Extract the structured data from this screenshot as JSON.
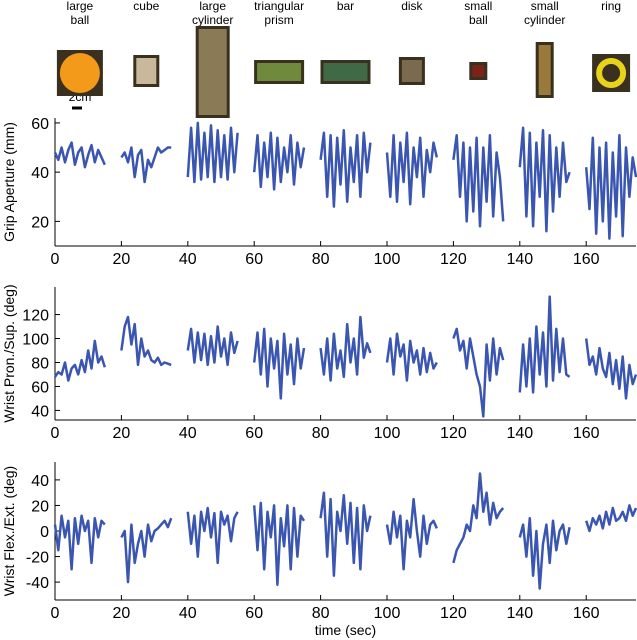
{
  "objects": [
    [
      "large",
      "ball"
    ],
    [
      "cube"
    ],
    [
      "large",
      "cylinder"
    ],
    [
      "triangular",
      "prism"
    ],
    [
      "bar"
    ],
    [
      "disk"
    ],
    [
      "small",
      "ball"
    ],
    [
      "small",
      "cylinder"
    ],
    [
      "ring"
    ]
  ],
  "scale_bar": "2cm",
  "chart_data": [
    {
      "type": "line",
      "ylabel": "Grip Aperture (mm)",
      "xlim": [
        0,
        175
      ],
      "ylim": [
        10,
        62
      ],
      "xticks": [
        0,
        20,
        40,
        60,
        80,
        100,
        120,
        140,
        160
      ],
      "yticks": [
        20,
        40,
        60
      ],
      "x": [
        0,
        1,
        2,
        3,
        4,
        5,
        6,
        7,
        8,
        9,
        10,
        11,
        12,
        13,
        14,
        15,
        17,
        20,
        21,
        22,
        23,
        24,
        25,
        26,
        27,
        28,
        29,
        30,
        31,
        32,
        33,
        34,
        35,
        37,
        40,
        41,
        42,
        43,
        44,
        45,
        46,
        47,
        48,
        49,
        50,
        51,
        52,
        53,
        54,
        55,
        57,
        60,
        61,
        62,
        63,
        64,
        65,
        66,
        67,
        68,
        69,
        70,
        71,
        72,
        73,
        74,
        75,
        77,
        80,
        81,
        82,
        83,
        84,
        85,
        86,
        87,
        88,
        89,
        90,
        91,
        92,
        93,
        94,
        95,
        97,
        100,
        101,
        102,
        103,
        104,
        105,
        106,
        107,
        108,
        109,
        110,
        111,
        112,
        113,
        114,
        115,
        117,
        120,
        121,
        122,
        123,
        124,
        125,
        126,
        127,
        128,
        129,
        130,
        131,
        132,
        133,
        134,
        135,
        137,
        140,
        141,
        142,
        143,
        144,
        145,
        146,
        147,
        148,
        149,
        150,
        151,
        152,
        153,
        154,
        155,
        157,
        160,
        161,
        162,
        163,
        164,
        165,
        166,
        167,
        168,
        169,
        170,
        171,
        172,
        173,
        174,
        175
      ],
      "series": [
        {
          "color": "#3a56b0",
          "values": [
            48,
            45,
            50,
            44,
            49,
            52,
            43,
            48,
            50,
            42,
            47,
            51,
            44,
            49,
            46,
            43,
            null,
            46,
            48,
            44,
            50,
            38,
            47,
            49,
            36,
            45,
            42,
            46,
            50,
            48,
            49,
            50,
            50,
            null,
            38,
            58,
            36,
            60,
            37,
            56,
            38,
            59,
            36,
            57,
            38,
            55,
            37,
            58,
            40,
            56,
            null,
            40,
            55,
            34,
            52,
            38,
            56,
            33,
            54,
            36,
            50,
            40,
            55,
            35,
            52,
            42,
            50,
            null,
            45,
            56,
            30,
            55,
            26,
            54,
            35,
            57,
            28,
            50,
            36,
            55,
            30,
            56,
            40,
            52,
            null,
            48,
            30,
            55,
            28,
            52,
            36,
            56,
            27,
            50,
            38,
            54,
            30,
            49,
            40,
            52,
            46,
            null,
            45,
            55,
            30,
            52,
            20,
            50,
            24,
            54,
            18,
            50,
            28,
            55,
            22,
            48,
            38,
            20,
            null,
            42,
            58,
            22,
            56,
            18,
            52,
            30,
            57,
            16,
            55,
            24,
            50,
            30,
            52,
            36,
            40,
            null,
            42,
            25,
            54,
            15,
            50,
            20,
            52,
            13,
            48,
            22,
            55,
            14,
            50,
            30,
            46,
            38
          ]
        }
      ]
    },
    {
      "type": "line",
      "ylabel": "Wrist Pron./Sup. (deg)",
      "xlim": [
        0,
        175
      ],
      "ylim": [
        32,
        143
      ],
      "xticks": [
        0,
        20,
        40,
        60,
        80,
        100,
        120,
        140,
        160
      ],
      "yticks": [
        40,
        60,
        80,
        100,
        120
      ],
      "x": [
        0,
        1,
        2,
        3,
        4,
        5,
        6,
        7,
        8,
        9,
        10,
        11,
        12,
        13,
        14,
        15,
        17,
        20,
        21,
        22,
        23,
        24,
        25,
        26,
        27,
        28,
        29,
        30,
        31,
        32,
        33,
        34,
        35,
        37,
        40,
        41,
        42,
        43,
        44,
        45,
        46,
        47,
        48,
        49,
        50,
        51,
        52,
        53,
        54,
        55,
        57,
        60,
        61,
        62,
        63,
        64,
        65,
        66,
        67,
        68,
        69,
        70,
        71,
        72,
        73,
        74,
        75,
        77,
        80,
        81,
        82,
        83,
        84,
        85,
        86,
        87,
        88,
        89,
        90,
        91,
        92,
        93,
        94,
        95,
        97,
        100,
        101,
        102,
        103,
        104,
        105,
        106,
        107,
        108,
        109,
        110,
        111,
        112,
        113,
        114,
        115,
        117,
        120,
        121,
        122,
        123,
        124,
        125,
        126,
        127,
        128,
        129,
        130,
        131,
        132,
        133,
        134,
        135,
        137,
        140,
        141,
        142,
        143,
        144,
        145,
        146,
        147,
        148,
        149,
        150,
        151,
        152,
        153,
        154,
        155,
        157,
        160,
        161,
        162,
        163,
        164,
        165,
        166,
        167,
        168,
        169,
        170,
        171,
        172,
        173,
        174,
        175
      ],
      "series": [
        {
          "color": "#3a56b0",
          "values": [
            68,
            72,
            70,
            80,
            65,
            75,
            78,
            70,
            82,
            72,
            90,
            75,
            98,
            80,
            85,
            76,
            null,
            90,
            110,
            118,
            95,
            112,
            78,
            100,
            85,
            90,
            82,
            80,
            84,
            78,
            80,
            79,
            78,
            null,
            90,
            108,
            80,
            105,
            82,
            104,
            78,
            102,
            80,
            110,
            85,
            100,
            78,
            105,
            88,
            98,
            null,
            80,
            105,
            70,
            108,
            60,
            100,
            75,
            98,
            50,
            104,
            70,
            95,
            62,
            100,
            75,
            92,
            null,
            92,
            70,
            100,
            65,
            104,
            75,
            90,
            68,
            112,
            80,
            100,
            70,
            118,
            84,
            96,
            88,
            null,
            80,
            100,
            70,
            104,
            85,
            95,
            65,
            98,
            80,
            90,
            70,
            92,
            72,
            88,
            75,
            80,
            null,
            100,
            108,
            90,
            98,
            75,
            100,
            85,
            70,
            60,
            35,
            95,
            65,
            100,
            70,
            92,
            82,
            null,
            55,
            95,
            60,
            100,
            55,
            110,
            70,
            105,
            60,
            135,
            65,
            108,
            72,
            100,
            70,
            68,
            null,
            100,
            78,
            85,
            70,
            92,
            75,
            68,
            88,
            62,
            82,
            58,
            85,
            50,
            78,
            62,
            70
          ]
        }
      ]
    },
    {
      "type": "line",
      "ylabel": "Wrist Flex./Ext. (deg)",
      "xlabel": "time (sec)",
      "xlim": [
        0,
        175
      ],
      "ylim": [
        -54,
        54
      ],
      "xticks": [
        0,
        20,
        40,
        60,
        80,
        100,
        120,
        140,
        160
      ],
      "yticks": [
        -40,
        -20,
        0,
        20,
        40
      ],
      "x": [
        0,
        1,
        2,
        3,
        4,
        5,
        6,
        7,
        8,
        9,
        10,
        11,
        12,
        13,
        14,
        15,
        17,
        20,
        21,
        22,
        23,
        24,
        25,
        26,
        27,
        28,
        29,
        30,
        31,
        32,
        33,
        34,
        35,
        37,
        40,
        41,
        42,
        43,
        44,
        45,
        46,
        47,
        48,
        49,
        50,
        51,
        52,
        53,
        54,
        55,
        57,
        60,
        61,
        62,
        63,
        64,
        65,
        66,
        67,
        68,
        69,
        70,
        71,
        72,
        73,
        74,
        75,
        77,
        80,
        81,
        82,
        83,
        84,
        85,
        86,
        87,
        88,
        89,
        90,
        91,
        92,
        93,
        94,
        95,
        97,
        100,
        101,
        102,
        103,
        104,
        105,
        106,
        107,
        108,
        109,
        110,
        111,
        112,
        113,
        114,
        115,
        117,
        120,
        121,
        122,
        123,
        124,
        125,
        126,
        127,
        128,
        129,
        130,
        131,
        132,
        133,
        134,
        135,
        137,
        140,
        141,
        142,
        143,
        144,
        145,
        146,
        147,
        148,
        149,
        150,
        151,
        152,
        153,
        154,
        155,
        157,
        160,
        161,
        162,
        163,
        164,
        165,
        166,
        167,
        168,
        169,
        170,
        171,
        172,
        173,
        174,
        175
      ],
      "series": [
        {
          "color": "#3a56b0",
          "values": [
            5,
            -15,
            12,
            -5,
            8,
            -30,
            10,
            -10,
            12,
            0,
            8,
            -25,
            10,
            -5,
            8,
            5,
            null,
            -5,
            0,
            -40,
            5,
            -25,
            -10,
            0,
            -20,
            5,
            -8,
            0,
            2,
            5,
            8,
            3,
            10,
            null,
            15,
            -10,
            12,
            -20,
            15,
            0,
            18,
            -5,
            14,
            -25,
            15,
            5,
            12,
            -8,
            10,
            15,
            null,
            20,
            -15,
            22,
            -30,
            15,
            -5,
            20,
            -42,
            10,
            -12,
            20,
            -30,
            18,
            -20,
            12,
            8,
            null,
            10,
            30,
            -20,
            25,
            -35,
            15,
            0,
            28,
            -10,
            22,
            -25,
            18,
            -30,
            20,
            0,
            12,
            null,
            5,
            -10,
            15,
            -5,
            12,
            -30,
            8,
            -5,
            25,
            0,
            -20,
            12,
            -10,
            5,
            8,
            2,
            null,
            -25,
            -15,
            -10,
            -5,
            5,
            0,
            20,
            10,
            45,
            15,
            30,
            5,
            22,
            10,
            15,
            18,
            null,
            -5,
            5,
            -20,
            10,
            -35,
            0,
            -45,
            -10,
            5,
            -25,
            8,
            -15,
            0,
            5,
            -10,
            3,
            null,
            8,
            0,
            10,
            5,
            12,
            2,
            15,
            5,
            18,
            8,
            10,
            15,
            8,
            20,
            12,
            18
          ]
        }
      ]
    }
  ]
}
